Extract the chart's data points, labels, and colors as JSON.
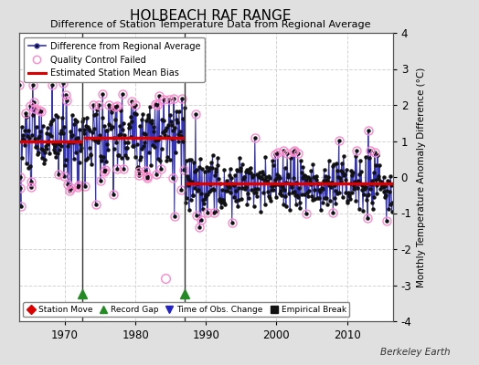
{
  "title": "HOLBEACH RAF RANGE",
  "subtitle": "Difference of Station Temperature Data from Regional Average",
  "ylabel_right": "Monthly Temperature Anomaly Difference (°C)",
  "credit": "Berkeley Earth",
  "ylim": [
    -4,
    4
  ],
  "xlim": [
    1963.5,
    2016.5
  ],
  "yticks": [
    -4,
    -3,
    -2,
    -1,
    0,
    1,
    2,
    3,
    4
  ],
  "xticks": [
    1970,
    1980,
    1990,
    2000,
    2010
  ],
  "grid_color": "#c8c8c8",
  "bg_color": "#e0e0e0",
  "plot_bg_color": "#ffffff",
  "segment1_bias": 1.0,
  "segment1_start": 1963.5,
  "segment1_end": 1972.4,
  "segment2_bias": 1.1,
  "segment2_start": 1972.6,
  "segment2_end": 1986.9,
  "segment3_bias": -0.18,
  "segment3_start": 1987.1,
  "segment3_end": 2016.5,
  "gap1_x": 1972.5,
  "gap2_x": 1987.0,
  "gap_triangle_y": -3.25,
  "line_color": "#3333bb",
  "dot_color": "#111111",
  "bias_color": "#dd0000",
  "qc_color": "#ff88cc",
  "legend_entries": [
    "Difference from Regional Average",
    "Quality Control Failed",
    "Estimated Station Mean Bias"
  ],
  "bottom_legend": [
    {
      "label": "Station Move",
      "color": "#dd0000",
      "marker": "D"
    },
    {
      "label": "Record Gap",
      "color": "#228B22",
      "marker": "^"
    },
    {
      "label": "Time of Obs. Change",
      "color": "#2222cc",
      "marker": "v"
    },
    {
      "label": "Empirical Break",
      "color": "#111111",
      "marker": "s"
    }
  ],
  "seg1_seed": 10,
  "seg2_seed": 20,
  "seg3_seed": 30
}
